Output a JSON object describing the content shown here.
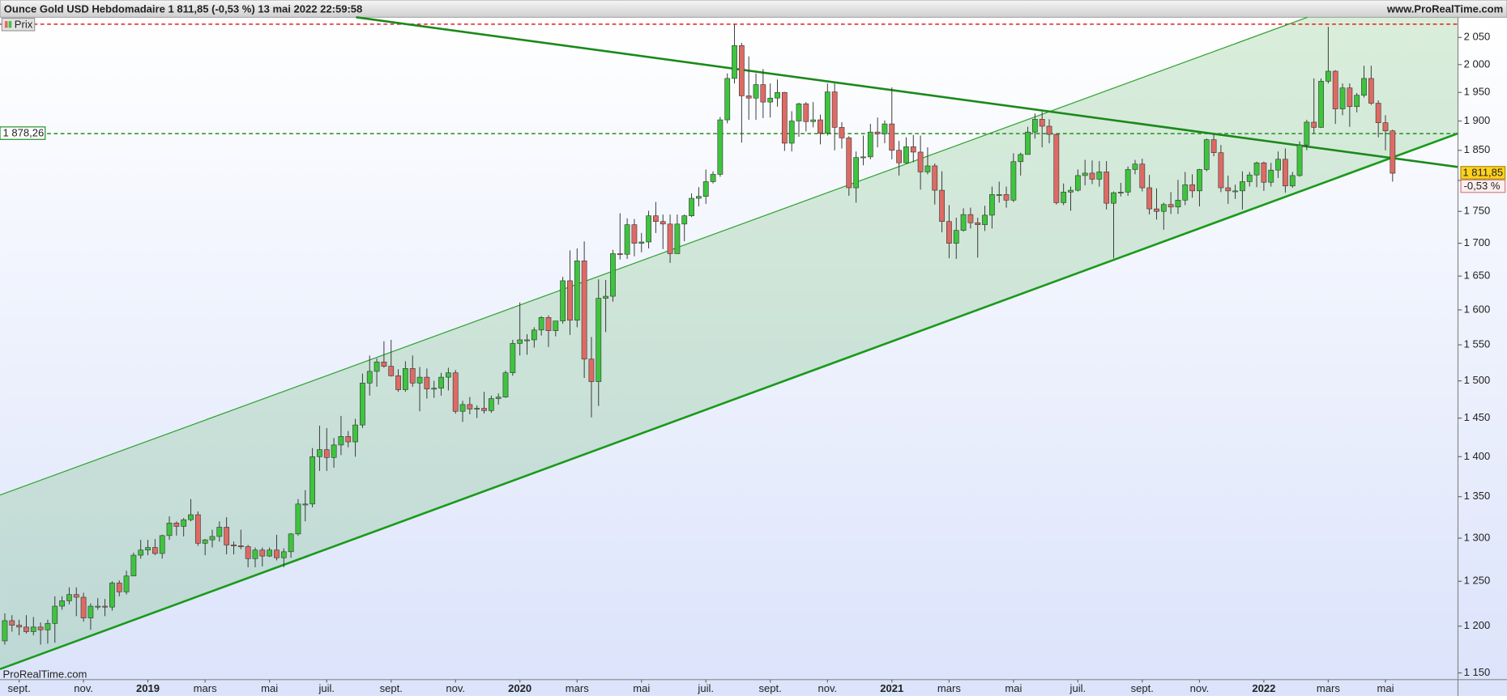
{
  "header": {
    "title": "Ounce Gold USD Hebdomadaire 1 811,85 (-0,53 %) 13 mai 2022 22:59:58",
    "site": "www.ProRealTime.com",
    "watermark": "ProRealTime.com"
  },
  "chart_data": {
    "type": "candlestick",
    "legend": "Prix",
    "up_color": "#3ec43e",
    "down_color": "#de6a64",
    "ylog": true,
    "ylim": [
      1143,
      2088
    ],
    "yticks": [
      {
        "value": 1150,
        "label": "1 150"
      },
      {
        "value": 1200,
        "label": "1 200"
      },
      {
        "value": 1250,
        "label": "1 250"
      },
      {
        "value": 1300,
        "label": "1 300"
      },
      {
        "value": 1350,
        "label": "1 350"
      },
      {
        "value": 1400,
        "label": "1 400"
      },
      {
        "value": 1450,
        "label": "1 450"
      },
      {
        "value": 1500,
        "label": "1 500"
      },
      {
        "value": 1550,
        "label": "1 550"
      },
      {
        "value": 1600,
        "label": "1 600"
      },
      {
        "value": 1650,
        "label": "1 650"
      },
      {
        "value": 1700,
        "label": "1 700"
      },
      {
        "value": 1750,
        "label": "1 750"
      },
      {
        "value": 1800,
        "label": "1 800"
      },
      {
        "value": 1850,
        "label": "1 850"
      },
      {
        "value": 1900,
        "label": "1 900"
      },
      {
        "value": 1950,
        "label": "1 950"
      },
      {
        "value": 2000,
        "label": "2 000"
      },
      {
        "value": 2050,
        "label": "2 050"
      }
    ],
    "categories": [
      null,
      null,
      "sept.",
      null,
      null,
      null,
      null,
      null,
      null,
      null,
      null,
      "nov.",
      null,
      null,
      null,
      null,
      null,
      null,
      null,
      null,
      "2019",
      null,
      null,
      null,
      null,
      null,
      null,
      null,
      "mars",
      null,
      null,
      null,
      null,
      null,
      null,
      null,
      null,
      "mai",
      null,
      null,
      null,
      null,
      null,
      null,
      null,
      "juil.",
      null,
      null,
      null,
      null,
      null,
      null,
      null,
      null,
      "sept.",
      null,
      null,
      null,
      null,
      null,
      null,
      null,
      null,
      "nov.",
      null,
      null,
      null,
      null,
      null,
      null,
      null,
      null,
      "2020",
      null,
      null,
      null,
      null,
      null,
      null,
      null,
      "mars",
      null,
      null,
      null,
      null,
      null,
      null,
      null,
      null,
      "mai",
      null,
      null,
      null,
      null,
      null,
      null,
      null,
      null,
      "juil.",
      null,
      null,
      null,
      null,
      null,
      null,
      null,
      null,
      "sept.",
      null,
      null,
      null,
      null,
      null,
      null,
      null,
      "nov.",
      null,
      null,
      null,
      null,
      null,
      null,
      null,
      null,
      "2021",
      null,
      null,
      null,
      null,
      null,
      null,
      null,
      "mars",
      null,
      null,
      null,
      null,
      null,
      null,
      null,
      null,
      "mai",
      null,
      null,
      null,
      null,
      null,
      null,
      null,
      null,
      "juil.",
      null,
      null,
      null,
      null,
      null,
      null,
      null,
      null,
      "sept.",
      null,
      null,
      null,
      null,
      null,
      null,
      null,
      "nov.",
      null,
      null,
      null,
      null,
      null,
      null,
      null,
      null,
      "2022",
      null,
      null,
      null,
      null,
      null,
      null,
      null,
      null,
      "mars",
      null,
      null,
      null,
      null,
      null,
      null,
      null,
      "mai",
      null
    ],
    "open": [
      1184,
      1206,
      1201,
      1199,
      1194,
      1199,
      1196,
      1203,
      1222,
      1228,
      1235,
      1232,
      1209,
      1222,
      1222,
      1221,
      1248,
      1238,
      1256,
      1280,
      1286,
      1289,
      1282,
      1303,
      1318,
      1314,
      1322,
      1328,
      1294,
      1298,
      1302,
      1313,
      1292,
      1291,
      1290,
      1276,
      1286,
      1279,
      1286,
      1277,
      1284,
      1305,
      1341,
      1341,
      1400,
      1409,
      1399,
      1415,
      1426,
      1419,
      1441,
      1497,
      1513,
      1526,
      1520,
      1507,
      1488,
      1517,
      1497,
      1505,
      1489,
      1490,
      1505,
      1511,
      1459,
      1468,
      1462,
      1463,
      1460,
      1476,
      1478,
      1511,
      1552,
      1557,
      1557,
      1571,
      1589,
      1570,
      1584,
      1643,
      1585,
      1673,
      1530,
      1499,
      1617,
      1620,
      1684,
      1683,
      1729,
      1700,
      1702,
      1743,
      1734,
      1730,
      1684,
      1730,
      1743,
      1771,
      1774,
      1798,
      1810,
      1902,
      1975,
      2035,
      1944,
      1940,
      1964,
      1933,
      1940,
      1950,
      1862,
      1900,
      1930,
      1899,
      1902,
      1879,
      1951,
      1889,
      1871,
      1788,
      1838,
      1839,
      1881,
      1878,
      1895,
      1850,
      1829,
      1856,
      1847,
      1814,
      1824,
      1784,
      1734,
      1700,
      1720,
      1745,
      1732,
      1729,
      1744,
      1777,
      1777,
      1768,
      1831,
      1843,
      1881,
      1903,
      1891,
      1877,
      1764,
      1781,
      1784,
      1808,
      1812,
      1802,
      1814,
      1763,
      1780,
      1781,
      1818,
      1827,
      1788,
      1754,
      1750,
      1761,
      1757,
      1768,
      1793,
      1783,
      1818,
      1868,
      1846,
      1788,
      1783,
      1783,
      1798,
      1809,
      1829,
      1797,
      1817,
      1835,
      1791,
      1808,
      1859,
      1898,
      1889,
      1970,
      1988,
      1921,
      1958,
      1925,
      1945,
      1975,
      1931,
      1897,
      1883
    ],
    "high": [
      1214,
      1212,
      1207,
      1212,
      1210,
      1204,
      1207,
      1233,
      1233,
      1243,
      1243,
      1237,
      1225,
      1231,
      1230,
      1250,
      1251,
      1262,
      1283,
      1298,
      1298,
      1299,
      1304,
      1326,
      1320,
      1324,
      1347,
      1332,
      1299,
      1310,
      1320,
      1325,
      1296,
      1310,
      1292,
      1289,
      1289,
      1289,
      1304,
      1288,
      1306,
      1347,
      1358,
      1411,
      1440,
      1437,
      1424,
      1453,
      1433,
      1449,
      1510,
      1535,
      1531,
      1555,
      1557,
      1516,
      1527,
      1535,
      1519,
      1517,
      1500,
      1511,
      1518,
      1515,
      1473,
      1478,
      1467,
      1485,
      1480,
      1483,
      1514,
      1557,
      1611,
      1565,
      1575,
      1591,
      1592,
      1584,
      1649,
      1689,
      1692,
      1703,
      1561,
      1645,
      1644,
      1690,
      1747,
      1739,
      1738,
      1716,
      1751,
      1765,
      1745,
      1745,
      1745,
      1745,
      1779,
      1789,
      1818,
      1815,
      1907,
      1984,
      2075,
      2040,
      2015,
      1984,
      1992,
      1966,
      1973,
      1951,
      1917,
      1932,
      1933,
      1933,
      1911,
      1966,
      1966,
      1898,
      1874,
      1848,
      1875,
      1895,
      1906,
      1901,
      1959,
      1866,
      1872,
      1876,
      1875,
      1855,
      1828,
      1815,
      1760,
      1740,
      1755,
      1756,
      1740,
      1759,
      1790,
      1798,
      1790,
      1845,
      1846,
      1890,
      1913,
      1916,
      1903,
      1878,
      1795,
      1790,
      1818,
      1834,
      1833,
      1832,
      1832,
      1782,
      1796,
      1823,
      1834,
      1836,
      1809,
      1787,
      1764,
      1781,
      1801,
      1814,
      1810,
      1819,
      1870,
      1877,
      1859,
      1808,
      1793,
      1815,
      1814,
      1831,
      1831,
      1829,
      1848,
      1853,
      1814,
      1865,
      1902,
      1975,
      1975,
      2070,
      1990,
      1966,
      1966,
      1949,
      1998,
      1998,
      1936,
      1910,
      1885
    ],
    "low": [
      1180,
      1194,
      1190,
      1192,
      1190,
      1180,
      1181,
      1182,
      1218,
      1224,
      1211,
      1205,
      1196,
      1218,
      1211,
      1217,
      1233,
      1235,
      1256,
      1276,
      1280,
      1280,
      1276,
      1298,
      1303,
      1302,
      1320,
      1291,
      1280,
      1289,
      1296,
      1281,
      1281,
      1287,
      1266,
      1266,
      1267,
      1278,
      1274,
      1266,
      1277,
      1303,
      1320,
      1337,
      1382,
      1382,
      1386,
      1402,
      1412,
      1400,
      1437,
      1480,
      1492,
      1518,
      1506,
      1485,
      1485,
      1492,
      1459,
      1476,
      1477,
      1480,
      1487,
      1456,
      1445,
      1455,
      1450,
      1456,
      1457,
      1468,
      1477,
      1507,
      1535,
      1536,
      1546,
      1563,
      1547,
      1562,
      1580,
      1564,
      1575,
      1504,
      1451,
      1466,
      1568,
      1612,
      1675,
      1676,
      1680,
      1686,
      1692,
      1716,
      1691,
      1670,
      1685,
      1703,
      1741,
      1758,
      1762,
      1795,
      1806,
      1896,
      1966,
      1863,
      1902,
      1902,
      1905,
      1906,
      1925,
      1849,
      1848,
      1873,
      1882,
      1889,
      1860,
      1875,
      1850,
      1853,
      1775,
      1764,
      1825,
      1835,
      1855,
      1862,
      1835,
      1808,
      1828,
      1830,
      1785,
      1810,
      1761,
      1717,
      1677,
      1676,
      1718,
      1723,
      1678,
      1719,
      1723,
      1764,
      1756,
      1765,
      1808,
      1843,
      1870,
      1855,
      1862,
      1761,
      1760,
      1751,
      1782,
      1792,
      1794,
      1790,
      1753,
      1677,
      1774,
      1775,
      1810,
      1782,
      1745,
      1737,
      1721,
      1746,
      1746,
      1760,
      1772,
      1758,
      1815,
      1840,
      1781,
      1762,
      1770,
      1753,
      1790,
      1789,
      1783,
      1790,
      1804,
      1780,
      1788,
      1806,
      1850,
      1879,
      1888,
      1966,
      1895,
      1910,
      1890,
      1915,
      1941,
      1928,
      1872,
      1850,
      1798
    ],
    "close": [
      1206,
      1201,
      1199,
      1194,
      1199,
      1196,
      1203,
      1222,
      1228,
      1235,
      1232,
      1209,
      1222,
      1222,
      1221,
      1248,
      1238,
      1256,
      1280,
      1286,
      1289,
      1282,
      1303,
      1318,
      1314,
      1322,
      1328,
      1294,
      1298,
      1302,
      1313,
      1292,
      1291,
      1290,
      1276,
      1286,
      1279,
      1286,
      1277,
      1284,
      1305,
      1341,
      1341,
      1400,
      1409,
      1399,
      1415,
      1426,
      1419,
      1441,
      1497,
      1513,
      1526,
      1520,
      1507,
      1488,
      1517,
      1497,
      1505,
      1489,
      1490,
      1505,
      1511,
      1459,
      1468,
      1462,
      1463,
      1460,
      1476,
      1478,
      1511,
      1552,
      1557,
      1557,
      1571,
      1589,
      1570,
      1584,
      1643,
      1585,
      1673,
      1530,
      1499,
      1617,
      1620,
      1684,
      1683,
      1729,
      1700,
      1702,
      1743,
      1734,
      1730,
      1684,
      1730,
      1743,
      1771,
      1774,
      1798,
      1810,
      1902,
      1975,
      2035,
      1944,
      1940,
      1964,
      1933,
      1940,
      1950,
      1862,
      1900,
      1930,
      1899,
      1902,
      1879,
      1951,
      1889,
      1871,
      1788,
      1838,
      1839,
      1881,
      1878,
      1895,
      1850,
      1829,
      1856,
      1847,
      1814,
      1824,
      1784,
      1734,
      1700,
      1720,
      1745,
      1732,
      1729,
      1744,
      1777,
      1777,
      1768,
      1831,
      1843,
      1881,
      1903,
      1891,
      1877,
      1764,
      1781,
      1784,
      1808,
      1812,
      1802,
      1814,
      1763,
      1780,
      1781,
      1818,
      1827,
      1788,
      1754,
      1750,
      1761,
      1757,
      1768,
      1793,
      1783,
      1818,
      1868,
      1846,
      1788,
      1783,
      1783,
      1798,
      1809,
      1829,
      1797,
      1817,
      1835,
      1791,
      1808,
      1859,
      1898,
      1889,
      1970,
      1988,
      1921,
      1958,
      1925,
      1945,
      1975,
      1931,
      1897,
      1883,
      1811.85
    ],
    "last_price": {
      "value": 1811.85,
      "label": "1 811,85"
    },
    "change": {
      "value": -0.53,
      "label": "-0,53 %"
    },
    "levels": [
      {
        "value": 2075,
        "color": "#e02020"
      },
      {
        "value": 1878.26,
        "label": "1 878,26",
        "color": "#1f8f1f"
      }
    ],
    "trendlines": [
      {
        "points": [
          [
            -0.67,
            1154
          ],
          [
            203.2,
            1879
          ]
        ],
        "color": "#1a9a1a",
        "width": 2.2
      },
      {
        "points": [
          [
            -0.67,
            1352
          ],
          [
            182.1,
            2088
          ]
        ],
        "color": "#2aa02a",
        "width": 1
      },
      {
        "points": [
          [
            49.1,
            2088
          ],
          [
            203.2,
            1822
          ]
        ],
        "color": "#1a8a1a",
        "width": 2.2
      }
    ]
  }
}
